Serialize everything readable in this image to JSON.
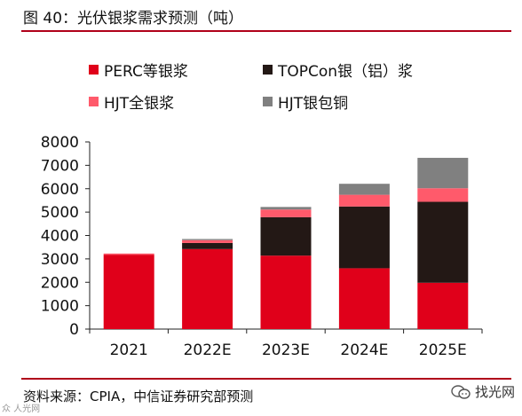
{
  "figure": {
    "title": "图 40：光伏银浆需求预测（吨）",
    "source": "资料来源：CPIA，中信证券研究部预测",
    "watermark": "找光网",
    "watermark_left": "众 人光网"
  },
  "colors": {
    "rule": "#b0001a",
    "perc": "#e0001a",
    "topcon": "#231815",
    "hjt_silver": "#ff5a6b",
    "hjt_copper": "#808080"
  },
  "chart_data": {
    "type": "bar",
    "stacked": true,
    "categories": [
      "2021",
      "2022E",
      "2023E",
      "2024E",
      "2025E"
    ],
    "series": [
      {
        "name": "PERC等银浆",
        "color": "#e0001a",
        "values": [
          3180,
          3420,
          3140,
          2600,
          1980
        ]
      },
      {
        "name": "TOPCon银（铝）浆",
        "color": "#231815",
        "values": [
          0,
          260,
          1640,
          2640,
          3460
        ]
      },
      {
        "name": "HJT全银浆",
        "color": "#ff5a6b",
        "values": [
          50,
          120,
          330,
          500,
          580
        ]
      },
      {
        "name": "HJT银包铜",
        "color": "#808080",
        "values": [
          0,
          50,
          110,
          470,
          1300
        ]
      }
    ],
    "ylim": [
      0,
      8000
    ],
    "yticks": [
      0,
      1000,
      2000,
      3000,
      4000,
      5000,
      6000,
      7000,
      8000
    ],
    "grid": false,
    "legend_position": "top"
  }
}
